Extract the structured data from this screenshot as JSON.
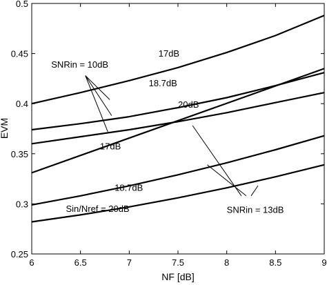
{
  "chart_data": {
    "type": "line",
    "xlabel": "NF [dB]",
    "ylabel": "EVM",
    "xlim": [
      6,
      9
    ],
    "ylim": [
      0.25,
      0.5
    ],
    "xticks": [
      6,
      6.5,
      7,
      7.5,
      8,
      8.5,
      9
    ],
    "yticks": [
      0.25,
      0.3,
      0.35,
      0.4,
      0.45,
      0.5
    ],
    "xtick_labels": [
      "6",
      "6.5",
      "7",
      "7.5",
      "8",
      "8.5",
      "9"
    ],
    "ytick_labels": [
      "0.25",
      "0.3",
      "0.35",
      "0.4",
      "0.45",
      "0.5"
    ],
    "grid": false,
    "line_color": "#000000",
    "series": [
      {
        "x": [
          6,
          6.5,
          7,
          7.5,
          8,
          8.5,
          9
        ],
        "values": [
          0.4,
          0.411,
          0.423,
          0.436,
          0.451,
          0.468,
          0.488
        ]
      },
      {
        "x": [
          6,
          6.5,
          7,
          7.5,
          8,
          8.5,
          9
        ],
        "values": [
          0.374,
          0.38,
          0.387,
          0.396,
          0.406,
          0.418,
          0.431
        ]
      },
      {
        "x": [
          6,
          6.5,
          7,
          7.5,
          8,
          8.5,
          9
        ],
        "values": [
          0.36,
          0.367,
          0.374,
          0.382,
          0.391,
          0.401,
          0.411
        ]
      },
      {
        "x": [
          6,
          9
        ],
        "values": [
          0.331,
          0.435
        ]
      },
      {
        "x": [
          6,
          6.5,
          7,
          7.5,
          8,
          8.5,
          9
        ],
        "values": [
          0.299,
          0.308,
          0.318,
          0.329,
          0.341,
          0.354,
          0.368
        ]
      },
      {
        "x": [
          6,
          6.5,
          7,
          7.5,
          8,
          8.5,
          9
        ],
        "values": [
          0.282,
          0.289,
          0.297,
          0.306,
          0.316,
          0.327,
          0.339
        ]
      }
    ],
    "annotations": [
      {
        "text": "17dB",
        "x": 7.3,
        "y": 0.447
      },
      {
        "text": "SNRin = 10dB",
        "x": 6.2,
        "y": 0.436
      },
      {
        "text": "18.7dB",
        "x": 7.2,
        "y": 0.4175
      },
      {
        "text": "20dB",
        "x": 7.5,
        "y": 0.396
      },
      {
        "text": "17dB",
        "x": 6.7,
        "y": 0.3545
      },
      {
        "text": "18.7dB",
        "x": 6.85,
        "y": 0.313
      },
      {
        "text": "Sin/Nref = 20dB",
        "x": 6.35,
        "y": 0.292
      },
      {
        "text": "SNRin = 13dB",
        "x": 8.0,
        "y": 0.291
      }
    ],
    "leaders": [
      {
        "from": [
          6.55,
          0.428
        ],
        "to": [
          6.8,
          0.404
        ]
      },
      {
        "from": [
          6.55,
          0.428
        ],
        "to": [
          6.82,
          0.388
        ]
      },
      {
        "from": [
          6.55,
          0.428
        ],
        "to": [
          6.78,
          0.372
        ]
      },
      {
        "from": [
          8.15,
          0.308
        ],
        "to": [
          7.65,
          0.378
        ]
      },
      {
        "from": [
          8.2,
          0.308
        ],
        "to": [
          7.8,
          0.339
        ]
      },
      {
        "from": [
          8.25,
          0.308
        ],
        "to": [
          8.32,
          0.318
        ]
      }
    ]
  }
}
